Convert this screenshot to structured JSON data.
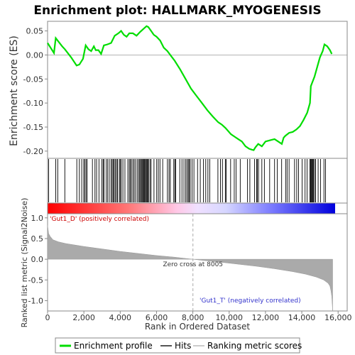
{
  "chart_data": {
    "type": "line",
    "title": "Enrichment plot: HALLMARK_MYOGENESIS",
    "es_panel": {
      "ylabel": "Enrichment score (ES)",
      "ylim": [
        -0.215,
        0.07
      ],
      "yticks": [
        0.05,
        0.0,
        -0.05,
        -0.1,
        -0.15,
        -0.2
      ],
      "ytick_labels": [
        "0.05",
        "0.00",
        "-0.05",
        "-0.10",
        "-0.15",
        "-0.20"
      ],
      "series": [
        {
          "name": "Enrichment profile",
          "color": "#00dd00",
          "x": [
            0,
            350,
            450,
            800,
            950,
            1300,
            1600,
            1750,
            1950,
            2100,
            2250,
            2400,
            2550,
            2650,
            2800,
            2950,
            3100,
            3300,
            3500,
            3700,
            3900,
            4050,
            4200,
            4350,
            4500,
            4700,
            4900,
            5100,
            5300,
            5450,
            5550,
            5700,
            5850,
            6000,
            6200,
            6400,
            6600,
            6800,
            7000,
            7300,
            7600,
            7900,
            8200,
            8500,
            8800,
            9100,
            9400,
            9600,
            9800,
            10100,
            10300,
            10500,
            10700,
            10900,
            11100,
            11250,
            11350,
            11450,
            11600,
            11800,
            12000,
            12200,
            12500,
            12700,
            12900,
            13000,
            13100,
            13300,
            13500,
            13700,
            13900,
            14100,
            14300,
            14450,
            14500,
            14550,
            14700,
            14850,
            15000,
            15150,
            15250,
            15400,
            15550,
            15650
          ],
          "y": [
            0.025,
            0.004,
            0.035,
            0.018,
            0.012,
            -0.005,
            -0.022,
            -0.02,
            -0.008,
            0.02,
            0.012,
            0.008,
            0.018,
            0.01,
            0.01,
            0.002,
            0.02,
            0.022,
            0.025,
            0.04,
            0.045,
            0.05,
            0.042,
            0.038,
            0.045,
            0.045,
            0.04,
            0.048,
            0.055,
            0.06,
            0.058,
            0.05,
            0.042,
            0.038,
            0.03,
            0.015,
            0.008,
            -0.002,
            -0.012,
            -0.03,
            -0.05,
            -0.07,
            -0.085,
            -0.1,
            -0.115,
            -0.128,
            -0.14,
            -0.145,
            -0.152,
            -0.165,
            -0.17,
            -0.175,
            -0.18,
            -0.19,
            -0.195,
            -0.197,
            -0.198,
            -0.192,
            -0.185,
            -0.19,
            -0.18,
            -0.178,
            -0.175,
            -0.18,
            -0.185,
            -0.172,
            -0.168,
            -0.162,
            -0.16,
            -0.155,
            -0.148,
            -0.135,
            -0.12,
            -0.1,
            -0.065,
            -0.06,
            -0.045,
            -0.025,
            -0.005,
            0.008,
            0.022,
            0.018,
            0.01,
            0.002
          ]
        }
      ]
    },
    "hits_panel": {
      "series_name": "Hits",
      "hit_positions": [
        60,
        450,
        560,
        950,
        1610,
        1750,
        1880,
        1990,
        2050,
        2120,
        2180,
        2470,
        2610,
        2700,
        2830,
        2990,
        3060,
        3110,
        3230,
        3310,
        3400,
        3500,
        3560,
        3620,
        3670,
        3730,
        3800,
        3850,
        3950,
        4000,
        4060,
        4150,
        4260,
        4420,
        4500,
        4560,
        4620,
        4700,
        4770,
        4850,
        4940,
        5020,
        5080,
        5120,
        5180,
        5230,
        5270,
        5310,
        5350,
        5390,
        5440,
        5480,
        5520,
        5560,
        5640,
        5700,
        5860,
        6010,
        6100,
        6190,
        6340,
        6600,
        6690,
        6760,
        6950,
        7010,
        7060,
        7280,
        7400,
        7510,
        7610,
        7680,
        7750,
        7800,
        7860,
        7960,
        8060,
        8260,
        8410,
        8580,
        8710,
        8830,
        8930,
        9380,
        9520,
        9630,
        9790,
        9840,
        10080,
        10280,
        10380,
        10610,
        11010,
        11140,
        11400,
        11510,
        11550,
        11620,
        11800,
        11940,
        12230,
        12500,
        12650,
        12890,
        13110,
        13190,
        13300,
        13600,
        13720,
        13820,
        14020,
        14180,
        14290,
        14450,
        14490,
        14530,
        14560,
        14600,
        14640,
        14700,
        14760,
        14900,
        15030,
        15220,
        15310
      ]
    },
    "metric_panel": {
      "ylabel": "Ranked list metric (Signal2Noise)",
      "xlabel": "Rank in Ordered Dataset",
      "series_name": "Ranking metric scores",
      "ylim": [
        -1.25,
        1.1
      ],
      "yticks": [
        1.0,
        0.5,
        0.0,
        -0.5,
        -1.0
      ],
      "ytick_labels": [
        "1.0",
        "0.5",
        "0.0",
        "-0.5",
        "-1.0"
      ],
      "xlim": [
        0,
        16500
      ],
      "xticks": [
        0,
        2000,
        4000,
        6000,
        8000,
        10000,
        12000,
        14000,
        16000
      ],
      "xtick_labels": [
        "0",
        "2,000",
        "4,000",
        "6,000",
        "8,000",
        "10,000",
        "12,000",
        "14,000",
        "16,000"
      ],
      "metric_x": [
        0,
        60,
        150,
        300,
        600,
        1000,
        2000,
        3000,
        4000,
        5000,
        6000,
        7000,
        7600,
        8005,
        8600,
        9500,
        10500,
        11500,
        12500,
        13500,
        14200,
        14800,
        15200,
        15450,
        15550,
        15600,
        15650,
        15680,
        15700
      ],
      "metric_y": [
        0.82,
        0.62,
        0.55,
        0.47,
        0.42,
        0.38,
        0.31,
        0.25,
        0.19,
        0.14,
        0.09,
        0.05,
        0.02,
        0.0,
        -0.03,
        -0.07,
        -0.12,
        -0.17,
        -0.23,
        -0.3,
        -0.36,
        -0.43,
        -0.5,
        -0.58,
        -0.65,
        -0.75,
        -0.9,
        -1.1,
        -1.25
      ],
      "zero_cross": 8005,
      "zero_cross_label": "Zero cross at 8005",
      "pos_label": "'Gut1_D' (positively correlated)",
      "neg_label": "'Gut1_T' (negatively correlated)"
    },
    "colors": {
      "es_line": "#00dd00",
      "pos_label": "#cc0000",
      "neg_label": "#3333cc",
      "metric_fill": "#aaaaaa",
      "zero_cross_line": "#aaaaaa"
    },
    "legend": {
      "placement": "bottom",
      "items": [
        "Enrichment profile",
        "Hits",
        "Ranking metric scores"
      ]
    }
  }
}
